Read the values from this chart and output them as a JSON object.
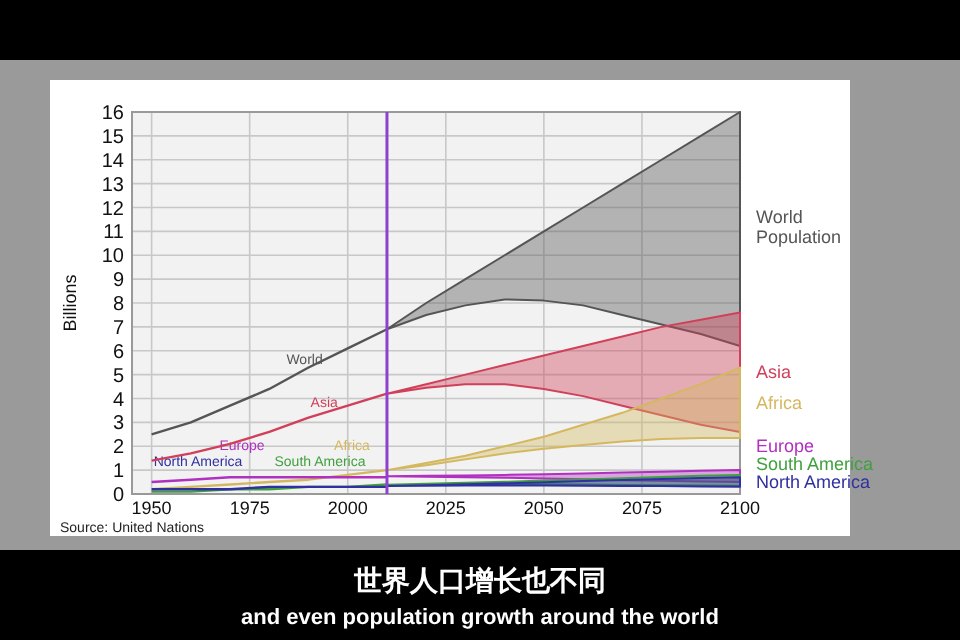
{
  "chart_data": {
    "type": "line",
    "ylabel": "Billions",
    "x": [
      1950,
      1960,
      1970,
      1980,
      1990,
      2000,
      2010,
      2020,
      2030,
      2040,
      2050,
      2060,
      2070,
      2080,
      2090,
      2100
    ],
    "xlim": [
      1945,
      2100
    ],
    "ylim": [
      0,
      16
    ],
    "xticks": [
      1950,
      1975,
      2000,
      2025,
      2050,
      2075,
      2100
    ],
    "yticks": [
      0,
      1,
      2,
      3,
      4,
      5,
      6,
      7,
      8,
      9,
      10,
      11,
      12,
      13,
      14,
      15,
      16
    ],
    "grid": true,
    "legend": "right",
    "ref_lines": [
      {
        "axis": "x",
        "value": 2010,
        "color": "#9040d0"
      }
    ],
    "series": [
      {
        "name": "World Population",
        "color": "#555555",
        "values": [
          2.5,
          3.0,
          3.7,
          4.4,
          5.3,
          6.1,
          6.9,
          null,
          null,
          null,
          null,
          null,
          null,
          null,
          null,
          null
        ],
        "lower": [
          null,
          null,
          null,
          null,
          null,
          null,
          6.9,
          7.5,
          7.9,
          8.15,
          8.1,
          7.9,
          7.5,
          7.1,
          6.7,
          6.2
        ],
        "upper": [
          null,
          null,
          null,
          null,
          null,
          null,
          6.9,
          8.0,
          9.0,
          10.0,
          11.0,
          12.0,
          13.0,
          14.0,
          15.0,
          16.0
        ]
      },
      {
        "name": "Asia",
        "color": "#d0405a",
        "values": [
          1.4,
          1.7,
          2.1,
          2.6,
          3.2,
          3.7,
          4.2,
          null,
          null,
          null,
          null,
          null,
          null,
          null,
          null,
          null
        ],
        "lower": [
          null,
          null,
          null,
          null,
          null,
          null,
          4.2,
          4.45,
          4.6,
          4.6,
          4.4,
          4.1,
          3.7,
          3.3,
          2.9,
          2.6
        ],
        "upper": [
          null,
          null,
          null,
          null,
          null,
          null,
          4.2,
          4.6,
          5.0,
          5.4,
          5.8,
          6.2,
          6.6,
          7.0,
          7.3,
          7.6
        ]
      },
      {
        "name": "Africa",
        "color": "#d4b860",
        "values": [
          0.2,
          0.3,
          0.4,
          0.5,
          0.6,
          0.8,
          1.0,
          null,
          null,
          null,
          null,
          null,
          null,
          null,
          null,
          null
        ],
        "lower": [
          null,
          null,
          null,
          null,
          null,
          null,
          1.0,
          1.2,
          1.45,
          1.7,
          1.9,
          2.05,
          2.2,
          2.3,
          2.35,
          2.35
        ],
        "upper": [
          null,
          null,
          null,
          null,
          null,
          null,
          1.0,
          1.3,
          1.6,
          2.0,
          2.4,
          2.9,
          3.4,
          4.0,
          4.6,
          5.3
        ]
      },
      {
        "name": "Europe",
        "color": "#b030c0",
        "values": [
          0.5,
          0.6,
          0.7,
          0.7,
          0.7,
          0.7,
          0.7,
          null,
          null,
          null,
          null,
          null,
          null,
          null,
          null,
          null
        ],
        "lower": [
          null,
          null,
          null,
          null,
          null,
          null,
          0.74,
          0.72,
          0.7,
          0.68,
          0.65,
          0.62,
          0.58,
          0.55,
          0.52,
          0.5
        ],
        "upper": [
          null,
          null,
          null,
          null,
          null,
          null,
          0.74,
          0.76,
          0.78,
          0.8,
          0.83,
          0.86,
          0.9,
          0.93,
          0.97,
          1.0
        ]
      },
      {
        "name": "South America",
        "color": "#40a040",
        "values": [
          0.1,
          0.1,
          0.2,
          0.2,
          0.3,
          0.3,
          0.4,
          null,
          null,
          null,
          null,
          null,
          null,
          null,
          null,
          null
        ],
        "lower": [
          null,
          null,
          null,
          null,
          null,
          null,
          0.39,
          0.41,
          0.42,
          0.42,
          0.41,
          0.4,
          0.38,
          0.37,
          0.36,
          0.35
        ],
        "upper": [
          null,
          null,
          null,
          null,
          null,
          null,
          0.39,
          0.43,
          0.47,
          0.51,
          0.56,
          0.61,
          0.66,
          0.71,
          0.76,
          0.8
        ]
      },
      {
        "name": "North America",
        "color": "#3030a0",
        "values": [
          0.2,
          0.2,
          0.2,
          0.3,
          0.3,
          0.3,
          0.3,
          null,
          null,
          null,
          null,
          null,
          null,
          null,
          null,
          null
        ],
        "lower": [
          null,
          null,
          null,
          null,
          null,
          null,
          0.34,
          0.35,
          0.36,
          0.36,
          0.36,
          0.35,
          0.34,
          0.33,
          0.31,
          0.3
        ],
        "upper": [
          null,
          null,
          null,
          null,
          null,
          null,
          0.34,
          0.37,
          0.41,
          0.45,
          0.49,
          0.54,
          0.59,
          0.63,
          0.67,
          0.7
        ]
      }
    ],
    "annotations": [
      {
        "text": "World",
        "x": 1989,
        "y": 5.2
      },
      {
        "text": "Asia",
        "x": 1994,
        "y": 3.4
      },
      "Africa",
      "Europe",
      "South America",
      "North America",
      "Source: United Nations",
      "世界人口增长也不同",
      "and even population growth around the world"
    ]
  }
}
